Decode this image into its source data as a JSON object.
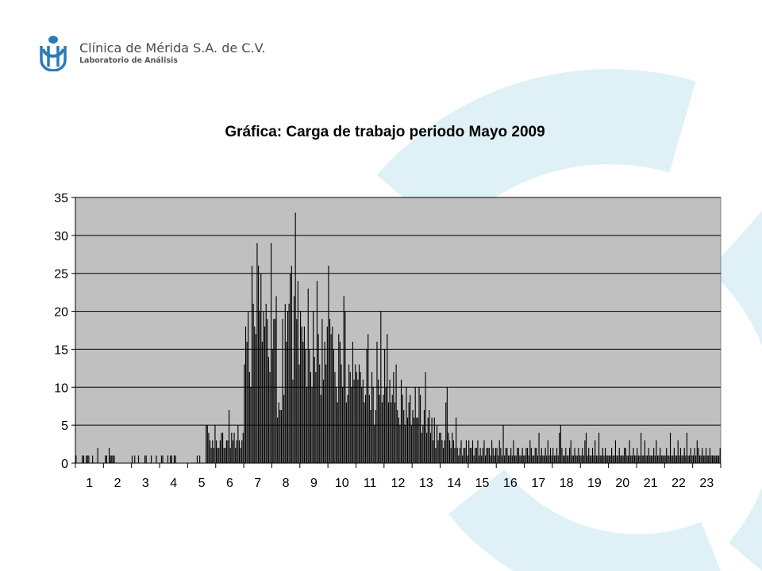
{
  "header": {
    "company": "Clínica de Mérida S.A. de C.V.",
    "subtitle": "Laboratorio de Análisis"
  },
  "colors": {
    "plot_background": "#c0c0c0",
    "bars": "#000000",
    "decoration": "#dff1f7",
    "logo": "#2b7ab8"
  },
  "chart_data": {
    "type": "bar",
    "title": "Gráfica: Carga de trabajo periodo Mayo 2009",
    "xlabel": "",
    "ylabel": "",
    "ylim": [
      0,
      35
    ],
    "yticks": [
      0,
      5,
      10,
      15,
      20,
      25,
      30,
      35
    ],
    "categories": [
      "1",
      "2",
      "3",
      "4",
      "5",
      "6",
      "7",
      "8",
      "9",
      "10",
      "11",
      "12",
      "13",
      "14",
      "15",
      "16",
      "17",
      "18",
      "19",
      "20",
      "21",
      "22",
      "23"
    ],
    "grid": true,
    "legend": "none",
    "values": [
      [
        1,
        0,
        0,
        0,
        0,
        1,
        1,
        0,
        1,
        1,
        1,
        0,
        0,
        1,
        0,
        0,
        0,
        2,
        0,
        0,
        0,
        0
      ],
      [
        0,
        1,
        1,
        0,
        2,
        1,
        1,
        1,
        1,
        0,
        0,
        0,
        0,
        0,
        0,
        0,
        0,
        0,
        0,
        0,
        0,
        0
      ],
      [
        1,
        0,
        1,
        0,
        0,
        1,
        0,
        0,
        0,
        0,
        1,
        1,
        0,
        0,
        0,
        1,
        0,
        0,
        0,
        1,
        0,
        0
      ],
      [
        0,
        1,
        1,
        0,
        0,
        0,
        1,
        0,
        1,
        1,
        0,
        1,
        1,
        0,
        0,
        0,
        0,
        0,
        0,
        0,
        0,
        0
      ],
      [
        0,
        0,
        0,
        0,
        0,
        0,
        0,
        1,
        0,
        1,
        0,
        0,
        0,
        0,
        5,
        5,
        4,
        3,
        2,
        3,
        2,
        5
      ],
      [
        3,
        2,
        2,
        3,
        4,
        4,
        2,
        2,
        3,
        3,
        7,
        2,
        4,
        3,
        4,
        2,
        3,
        5,
        3,
        2,
        3,
        4
      ],
      [
        13,
        18,
        16,
        20,
        12,
        10,
        26,
        21,
        18,
        17,
        29,
        26,
        20,
        25,
        16,
        20,
        18,
        21,
        19,
        14,
        12,
        29
      ],
      [
        15,
        19,
        19,
        22,
        6,
        8,
        7,
        7,
        19,
        9,
        21,
        16,
        20,
        21,
        25,
        26,
        11,
        22,
        33,
        19,
        24,
        13
      ],
      [
        20,
        18,
        16,
        18,
        15,
        10,
        23,
        15,
        12,
        10,
        20,
        14,
        12,
        24,
        17,
        13,
        9,
        19,
        11,
        16,
        13,
        18
      ],
      [
        26,
        19,
        17,
        18,
        15,
        12,
        10,
        8,
        17,
        16,
        13,
        10,
        22,
        20,
        8,
        9,
        13,
        12,
        10,
        16,
        11,
        13
      ],
      [
        12,
        11,
        13,
        12,
        10,
        11,
        8,
        9,
        15,
        17,
        9,
        7,
        12,
        10,
        5,
        7,
        16,
        11,
        9,
        20,
        8,
        9
      ],
      [
        15,
        10,
        17,
        8,
        11,
        8,
        9,
        12,
        8,
        13,
        7,
        6,
        5,
        11,
        9,
        7,
        5,
        10,
        6,
        8,
        9,
        5
      ],
      [
        7,
        6,
        10,
        6,
        6,
        10,
        9,
        4,
        5,
        7,
        12,
        4,
        6,
        7,
        4,
        6,
        3,
        6,
        2,
        5,
        3,
        4
      ],
      [
        4,
        3,
        2,
        3,
        8,
        10,
        4,
        3,
        2,
        4,
        3,
        2,
        6,
        2,
        1,
        2,
        3,
        1,
        2,
        2,
        3,
        1
      ],
      [
        3,
        2,
        2,
        3,
        1,
        2,
        2,
        3,
        1,
        2,
        1,
        2,
        3,
        1,
        2,
        2,
        2,
        1,
        3,
        2,
        1,
        2
      ],
      [
        2,
        1,
        3,
        2,
        1,
        5,
        1,
        2,
        2,
        1,
        1,
        2,
        1,
        3,
        1,
        1,
        2,
        2,
        1,
        1,
        2,
        1
      ],
      [
        1,
        2,
        2,
        1,
        3,
        2,
        1,
        1,
        2,
        2,
        1,
        4,
        1,
        2,
        1,
        1,
        2,
        1,
        3,
        1,
        2,
        1
      ],
      [
        2,
        1,
        1,
        2,
        1,
        4,
        5,
        2,
        1,
        1,
        2,
        1,
        1,
        2,
        3,
        1,
        1,
        2,
        1,
        1,
        2,
        1
      ],
      [
        1,
        2,
        1,
        3,
        4,
        1,
        2,
        1,
        1,
        2,
        1,
        3,
        1,
        1,
        4,
        1,
        1,
        2,
        1,
        2,
        1,
        1
      ],
      [
        1,
        1,
        2,
        1,
        1,
        3,
        1,
        1,
        2,
        1,
        1,
        1,
        2,
        2,
        1,
        1,
        3,
        1,
        1,
        2,
        1,
        1
      ],
      [
        2,
        1,
        1,
        4,
        1,
        1,
        3,
        1,
        1,
        2,
        1,
        1,
        1,
        2,
        1,
        3,
        1,
        1,
        2,
        1,
        1,
        1
      ],
      [
        1,
        2,
        1,
        1,
        4,
        1,
        1,
        2,
        1,
        1,
        3,
        1,
        2,
        1,
        1,
        2,
        1,
        4,
        1,
        1,
        2,
        1
      ],
      [
        1,
        2,
        1,
        3,
        2,
        1,
        1,
        2,
        1,
        1,
        2,
        1,
        1,
        2,
        1,
        1,
        1,
        1,
        1,
        1,
        1,
        2
      ]
    ]
  }
}
